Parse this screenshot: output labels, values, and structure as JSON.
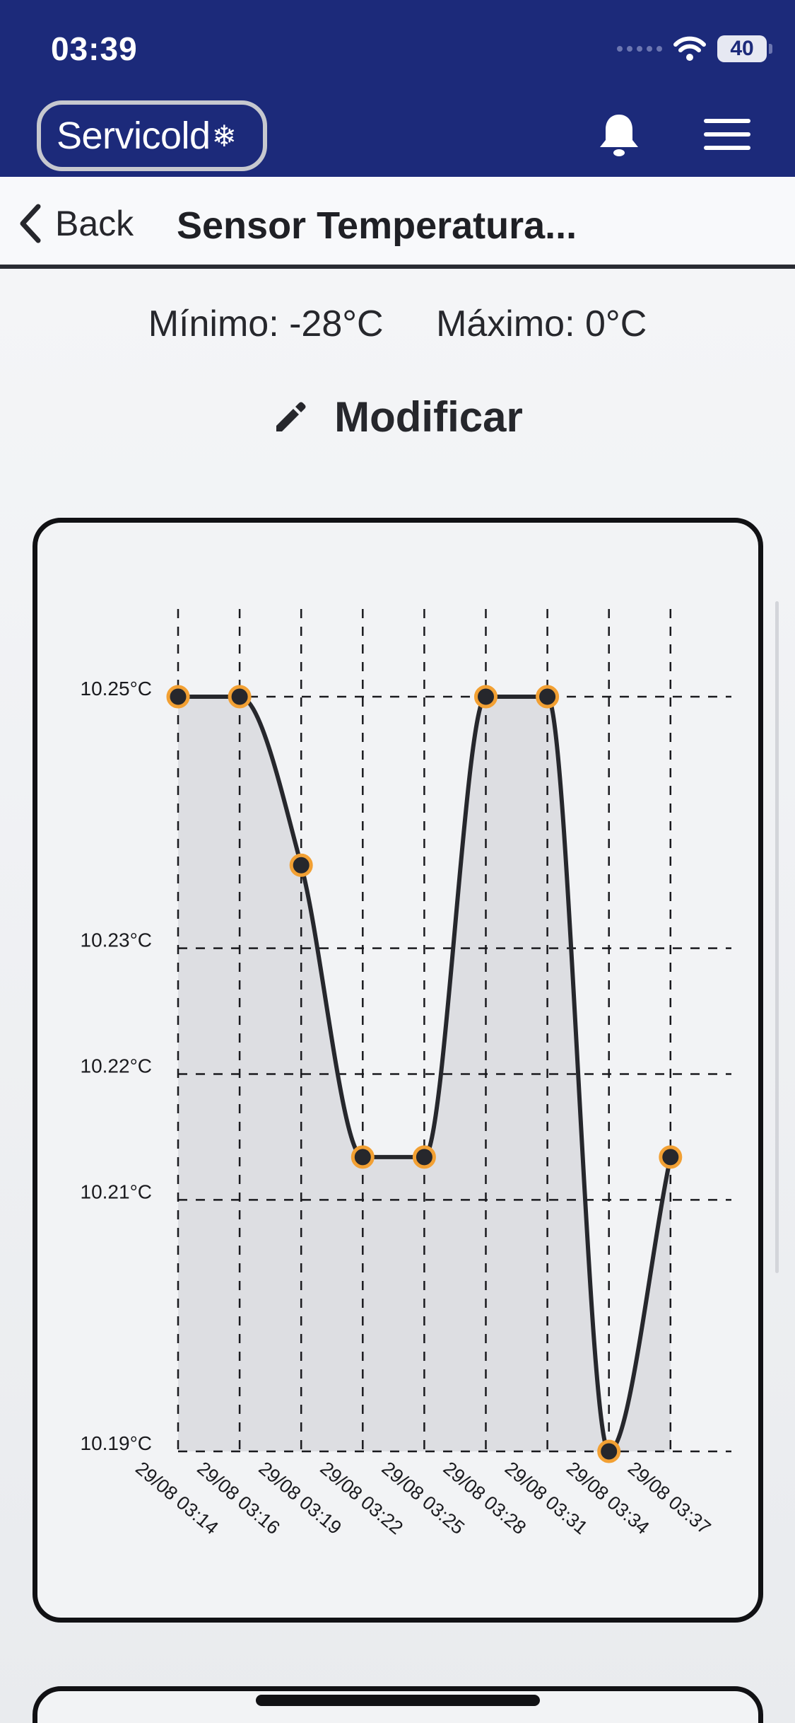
{
  "status_bar": {
    "time": "03:39",
    "battery": "40"
  },
  "header": {
    "logo_text": "Servicold",
    "logo_icon": "snowflake-icon",
    "bell_icon": "bell-icon",
    "menu_icon": "hamburger-menu-icon",
    "background": "#1c2a7a"
  },
  "nav": {
    "back_label": "Back",
    "title": "Sensor Temperatura..."
  },
  "limits": {
    "min_label": "Mínimo: -28°C",
    "max_label": "Máximo: 0°C"
  },
  "actions": {
    "modify_label": "Modificar",
    "modify_icon": "pencil-icon"
  },
  "chart_data": {
    "type": "line",
    "title": "",
    "xlabel": "",
    "ylabel": "",
    "y_unit": "°C",
    "categories": [
      "29/08 03:14",
      "29/08 03:16",
      "29/08 03:19",
      "29/08 03:22",
      "29/08 03:25",
      "29/08 03:28",
      "29/08 03:31",
      "29/08 03:34",
      "29/08 03:37"
    ],
    "series": [
      {
        "values": [
          10.25,
          10.25,
          10.2366,
          10.2134,
          10.2134,
          10.25,
          10.25,
          10.19,
          10.2134
        ]
      }
    ],
    "y_ticks": [
      10.25,
      10.23,
      10.22,
      10.21,
      10.19
    ],
    "y_tick_labels": [
      "10.25°C",
      "10.23°C",
      "10.22°C",
      "10.21°C",
      "10.19°C"
    ],
    "ylim": [
      10.19,
      10.25
    ],
    "grid": true,
    "area_fill": true,
    "line_color": "#26272c",
    "point_color": "#f2a033",
    "fill_color": "#dddee2"
  }
}
